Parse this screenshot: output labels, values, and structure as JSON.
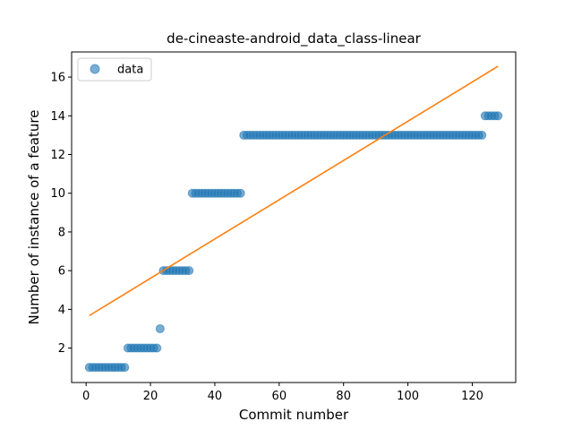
{
  "chart_data": {
    "type": "scatter",
    "title": "de-cineaste-android_data_class-linear",
    "xlabel": "Commit number",
    "ylabel": "Number of instance of a feature",
    "xlim": [
      -4.5,
      133.5
    ],
    "ylim": [
      0.22,
      17.3
    ],
    "xticks": [
      0,
      20,
      40,
      60,
      80,
      100,
      120
    ],
    "yticks": [
      2,
      4,
      6,
      8,
      10,
      12,
      14,
      16
    ],
    "grid": false,
    "legend": {
      "position": "top-left",
      "entries": [
        "data"
      ]
    },
    "series": [
      {
        "name": "data",
        "kind": "points",
        "color": "#1f77b4",
        "points": [
          [
            1,
            1
          ],
          [
            2,
            1
          ],
          [
            3,
            1
          ],
          [
            4,
            1
          ],
          [
            5,
            1
          ],
          [
            6,
            1
          ],
          [
            7,
            1
          ],
          [
            8,
            1
          ],
          [
            9,
            1
          ],
          [
            10,
            1
          ],
          [
            11,
            1
          ],
          [
            12,
            1
          ],
          [
            13,
            2
          ],
          [
            14,
            2
          ],
          [
            15,
            2
          ],
          [
            16,
            2
          ],
          [
            17,
            2
          ],
          [
            18,
            2
          ],
          [
            19,
            2
          ],
          [
            20,
            2
          ],
          [
            21,
            2
          ],
          [
            22,
            2
          ],
          [
            23,
            3
          ],
          [
            24,
            6
          ],
          [
            25,
            6
          ],
          [
            26,
            6
          ],
          [
            27,
            6
          ],
          [
            28,
            6
          ],
          [
            29,
            6
          ],
          [
            30,
            6
          ],
          [
            31,
            6
          ],
          [
            32,
            6
          ],
          [
            33,
            10
          ],
          [
            34,
            10
          ],
          [
            35,
            10
          ],
          [
            36,
            10
          ],
          [
            37,
            10
          ],
          [
            38,
            10
          ],
          [
            39,
            10
          ],
          [
            40,
            10
          ],
          [
            41,
            10
          ],
          [
            42,
            10
          ],
          [
            43,
            10
          ],
          [
            44,
            10
          ],
          [
            45,
            10
          ],
          [
            46,
            10
          ],
          [
            47,
            10
          ],
          [
            48,
            10
          ],
          [
            49,
            13
          ],
          [
            50,
            13
          ],
          [
            51,
            13
          ],
          [
            52,
            13
          ],
          [
            53,
            13
          ],
          [
            54,
            13
          ],
          [
            55,
            13
          ],
          [
            56,
            13
          ],
          [
            57,
            13
          ],
          [
            58,
            13
          ],
          [
            59,
            13
          ],
          [
            60,
            13
          ],
          [
            61,
            13
          ],
          [
            62,
            13
          ],
          [
            63,
            13
          ],
          [
            64,
            13
          ],
          [
            65,
            13
          ],
          [
            66,
            13
          ],
          [
            67,
            13
          ],
          [
            68,
            13
          ],
          [
            69,
            13
          ],
          [
            70,
            13
          ],
          [
            71,
            13
          ],
          [
            72,
            13
          ],
          [
            73,
            13
          ],
          [
            74,
            13
          ],
          [
            75,
            13
          ],
          [
            76,
            13
          ],
          [
            77,
            13
          ],
          [
            78,
            13
          ],
          [
            79,
            13
          ],
          [
            80,
            13
          ],
          [
            81,
            13
          ],
          [
            82,
            13
          ],
          [
            83,
            13
          ],
          [
            84,
            13
          ],
          [
            85,
            13
          ],
          [
            86,
            13
          ],
          [
            87,
            13
          ],
          [
            88,
            13
          ],
          [
            89,
            13
          ],
          [
            90,
            13
          ],
          [
            91,
            13
          ],
          [
            92,
            13
          ],
          [
            93,
            13
          ],
          [
            94,
            13
          ],
          [
            95,
            13
          ],
          [
            96,
            13
          ],
          [
            97,
            13
          ],
          [
            98,
            13
          ],
          [
            99,
            13
          ],
          [
            100,
            13
          ],
          [
            101,
            13
          ],
          [
            102,
            13
          ],
          [
            103,
            13
          ],
          [
            104,
            13
          ],
          [
            105,
            13
          ],
          [
            106,
            13
          ],
          [
            107,
            13
          ],
          [
            108,
            13
          ],
          [
            109,
            13
          ],
          [
            110,
            13
          ],
          [
            111,
            13
          ],
          [
            112,
            13
          ],
          [
            113,
            13
          ],
          [
            114,
            13
          ],
          [
            115,
            13
          ],
          [
            116,
            13
          ],
          [
            117,
            13
          ],
          [
            118,
            13
          ],
          [
            119,
            13
          ],
          [
            120,
            13
          ],
          [
            121,
            13
          ],
          [
            122,
            13
          ],
          [
            123,
            13
          ],
          [
            124,
            14
          ],
          [
            125,
            14
          ],
          [
            126,
            14
          ],
          [
            127,
            14
          ],
          [
            128,
            14
          ]
        ]
      },
      {
        "kind": "line",
        "color": "#ff7f0e",
        "points": [
          [
            1,
            3.68
          ],
          [
            128,
            16.56
          ]
        ]
      }
    ]
  }
}
